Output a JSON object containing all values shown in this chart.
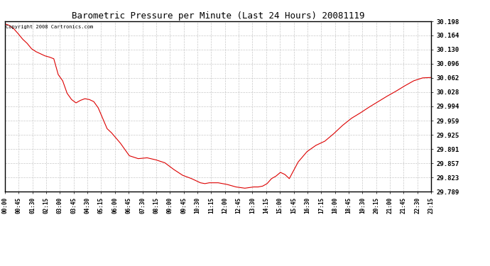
{
  "title": "Barometric Pressure per Minute (Last 24 Hours) 20081119",
  "copyright_text": "Copyright 2008 Cartronics.com",
  "line_color": "#dd0000",
  "background_color": "#ffffff",
  "plot_bg_color": "#ffffff",
  "grid_color": "#bbbbbb",
  "ytick_labels": [
    "29.789",
    "29.823",
    "29.857",
    "29.891",
    "29.925",
    "29.959",
    "29.994",
    "30.028",
    "30.062",
    "30.096",
    "30.130",
    "30.164",
    "30.198"
  ],
  "ytick_values": [
    29.789,
    29.823,
    29.857,
    29.891,
    29.925,
    29.959,
    29.994,
    30.028,
    30.062,
    30.096,
    30.13,
    30.164,
    30.198
  ],
  "xtick_labels": [
    "00:00",
    "00:45",
    "01:30",
    "02:15",
    "03:00",
    "03:45",
    "04:30",
    "05:15",
    "06:00",
    "06:45",
    "07:30",
    "08:15",
    "09:00",
    "09:45",
    "10:30",
    "11:15",
    "12:00",
    "12:45",
    "13:30",
    "14:15",
    "15:00",
    "15:45",
    "16:30",
    "17:15",
    "18:00",
    "18:45",
    "19:30",
    "20:15",
    "21:00",
    "21:45",
    "22:30",
    "23:15"
  ],
  "ylim": [
    29.789,
    30.198
  ],
  "xlim": [
    0,
    1439
  ],
  "key_points_x": [
    0,
    15,
    30,
    45,
    60,
    75,
    90,
    105,
    120,
    135,
    150,
    165,
    180,
    195,
    210,
    225,
    240,
    255,
    270,
    285,
    300,
    315,
    330,
    345,
    360,
    390,
    420,
    450,
    480,
    510,
    540,
    570,
    585,
    600,
    615,
    630,
    645,
    660,
    675,
    690,
    720,
    750,
    780,
    810,
    840,
    855,
    870,
    885,
    900,
    915,
    930,
    945,
    960,
    990,
    1020,
    1050,
    1080,
    1110,
    1140,
    1170,
    1200,
    1230,
    1260,
    1290,
    1320,
    1350,
    1380,
    1410,
    1439
  ],
  "key_points_y": [
    30.192,
    30.188,
    30.18,
    30.168,
    30.155,
    30.145,
    30.132,
    30.125,
    30.12,
    30.115,
    30.112,
    30.108,
    30.07,
    30.055,
    30.025,
    30.01,
    30.002,
    30.008,
    30.012,
    30.01,
    30.005,
    29.99,
    29.965,
    29.94,
    29.93,
    29.905,
    29.875,
    29.868,
    29.87,
    29.865,
    29.858,
    29.842,
    29.835,
    29.828,
    29.824,
    29.82,
    29.815,
    29.81,
    29.808,
    29.81,
    29.81,
    29.806,
    29.8,
    29.797,
    29.8,
    29.8,
    29.802,
    29.808,
    29.82,
    29.826,
    29.835,
    29.83,
    29.82,
    29.86,
    29.885,
    29.9,
    29.91,
    29.928,
    29.948,
    29.965,
    29.978,
    29.992,
    30.005,
    30.018,
    30.03,
    30.043,
    30.055,
    30.062,
    30.063
  ]
}
